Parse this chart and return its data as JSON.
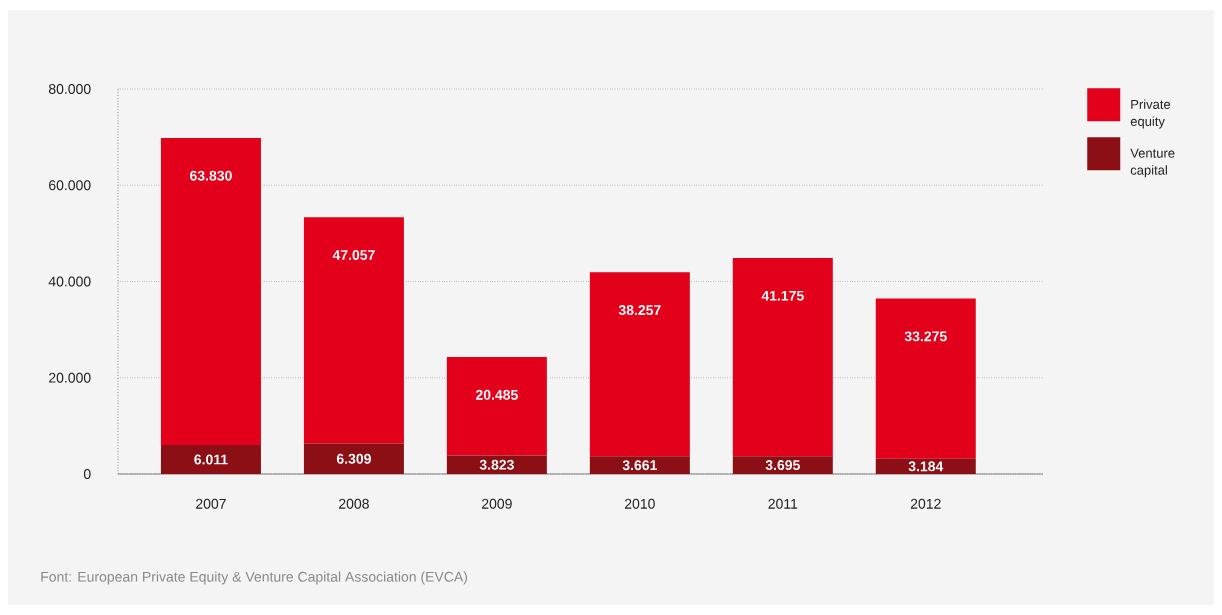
{
  "chart_data": {
    "type": "bar",
    "stacked": true,
    "categories": [
      "2007",
      "2008",
      "2009",
      "2010",
      "2011",
      "2012"
    ],
    "series": [
      {
        "name": "Venture capital",
        "color": "#8c0f16",
        "values": [
          6011,
          6309,
          3823,
          3661,
          3695,
          3184
        ],
        "value_labels": [
          "6.011",
          "6.309",
          "3.823",
          "3.661",
          "3.695",
          "3.184"
        ]
      },
      {
        "name": "Private equity",
        "color": "#e2001a",
        "values": [
          63830,
          47057,
          20485,
          38257,
          41175,
          33275
        ],
        "value_labels": [
          "63.830",
          "47.057",
          "20.485",
          "38.257",
          "41.175",
          "33.275"
        ]
      }
    ],
    "ylim": [
      0,
      80000
    ],
    "yticks": [
      {
        "value": 0,
        "label": "0"
      },
      {
        "value": 20000,
        "label": "20.000"
      },
      {
        "value": 40000,
        "label": "40.000"
      },
      {
        "value": 60000,
        "label": "60.000"
      },
      {
        "value": 80000,
        "label": "80.000"
      }
    ],
    "grid": "y",
    "legend": "top right",
    "annotations": [
      "Font: European Private Equity  & Venture Capital Association (EVCA)"
    ]
  }
}
